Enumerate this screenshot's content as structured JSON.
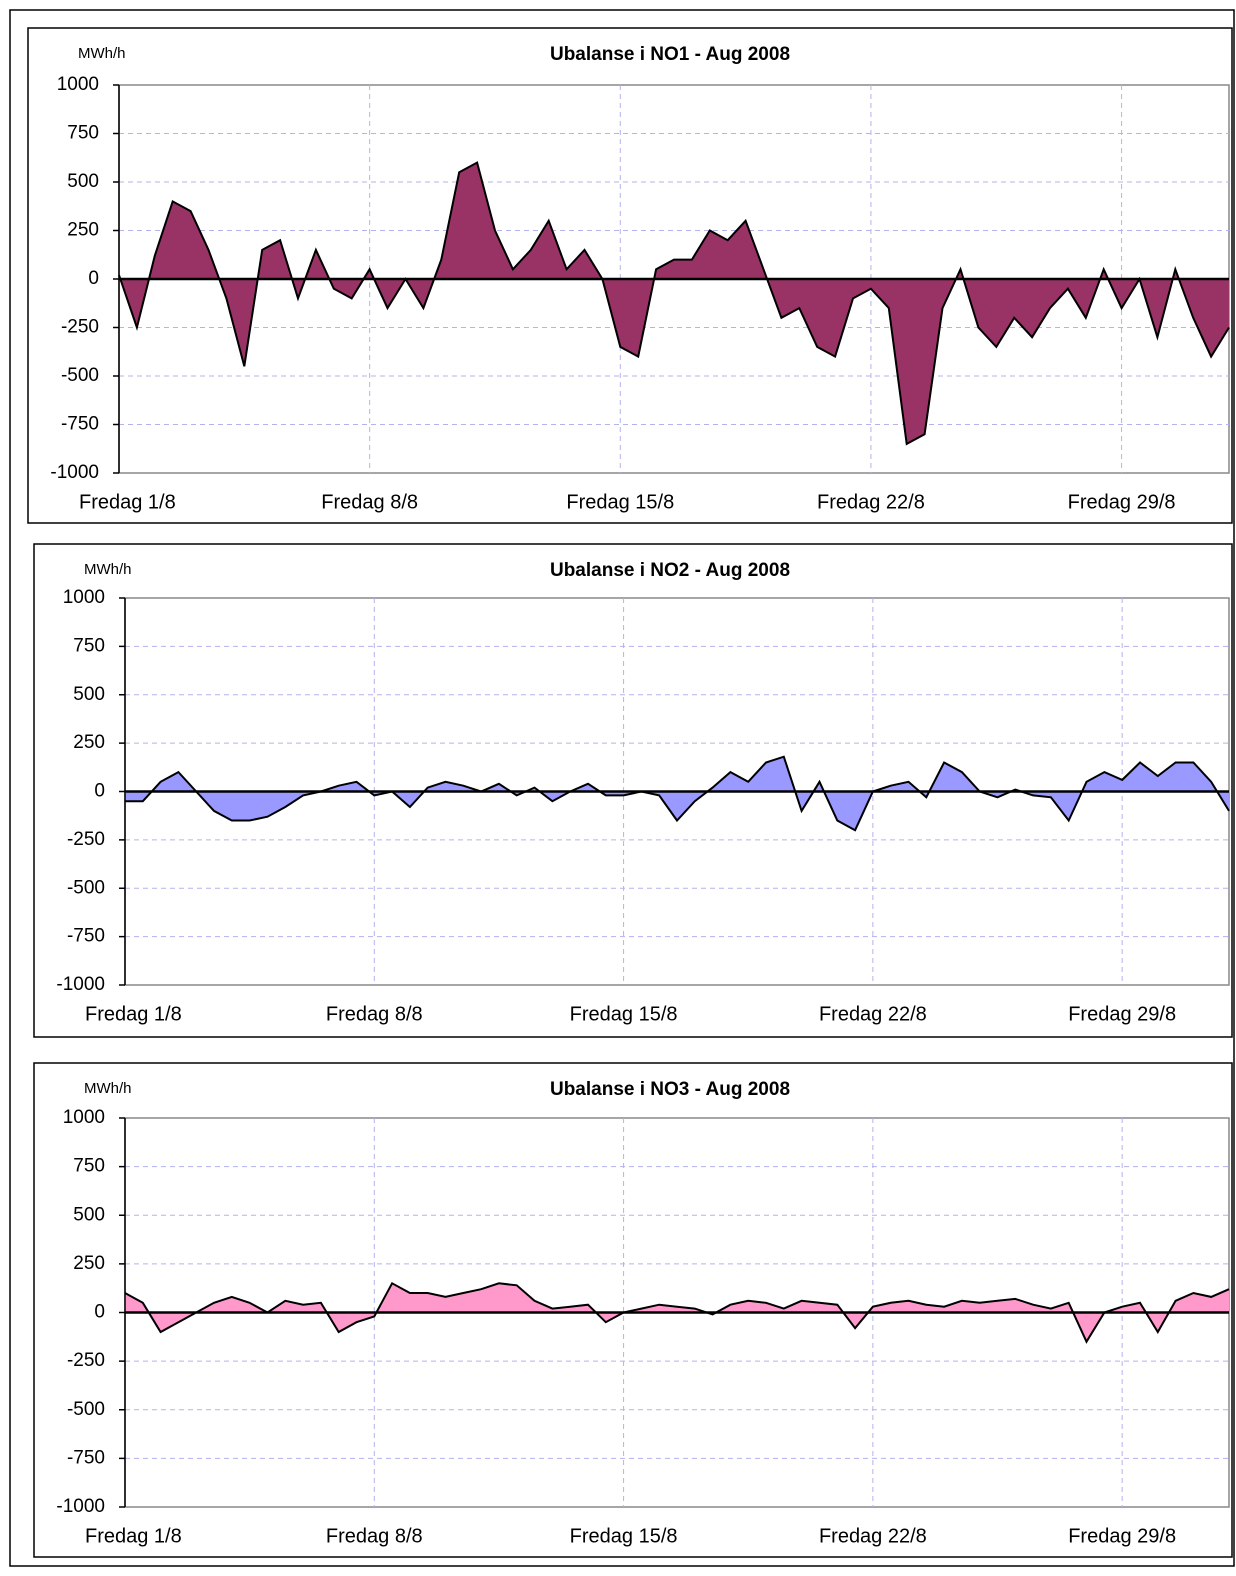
{
  "chart_data": [
    {
      "type": "area",
      "title": "Ubalanse i NO1 -  Aug  2008",
      "y_unit": "MWh/h",
      "x": [
        0,
        0.5,
        1,
        1.5,
        2,
        2.5,
        3,
        3.5,
        4,
        4.5,
        5,
        5.5,
        6,
        6.5,
        7,
        7.5,
        8,
        8.5,
        9,
        9.5,
        10,
        10.5,
        11,
        11.5,
        12,
        12.5,
        13,
        13.5,
        14,
        14.5,
        15,
        15.5,
        16,
        16.5,
        17,
        17.5,
        18,
        18.5,
        19,
        19.5,
        20,
        20.5,
        21,
        21.5,
        22,
        22.5,
        23,
        23.5,
        24,
        24.5,
        25,
        25.5,
        26,
        26.5,
        27,
        27.5,
        28,
        28.5,
        29,
        29.5,
        30,
        30.5,
        31
      ],
      "values": [
        20,
        -250,
        120,
        400,
        350,
        150,
        -100,
        -450,
        150,
        200,
        -100,
        150,
        -50,
        -100,
        50,
        -150,
        0,
        -150,
        100,
        550,
        600,
        250,
        50,
        150,
        300,
        50,
        150,
        0,
        -350,
        -400,
        50,
        100,
        100,
        250,
        200,
        300,
        50,
        -200,
        -150,
        -350,
        -400,
        -100,
        -50,
        -150,
        -850,
        -800,
        -150,
        50,
        -250,
        -350,
        -200,
        -300,
        -150,
        -50,
        -200,
        50,
        -150,
        0,
        -300,
        50,
        -200,
        -400,
        -250
      ],
      "color": "#993366",
      "line_color": "#000000",
      "xlim": [
        0,
        31
      ],
      "ylim": [
        -1000,
        1000
      ],
      "xticks": [
        {
          "value": 0,
          "label": "Fredag 1/8"
        },
        {
          "value": 7,
          "label": "Fredag 8/8"
        },
        {
          "value": 14,
          "label": "Fredag 15/8"
        },
        {
          "value": 21,
          "label": "Fredag 22/8"
        },
        {
          "value": 28,
          "label": "Fredag 29/8"
        }
      ],
      "yticks": [
        -1000,
        -750,
        -500,
        -250,
        0,
        250,
        500,
        750,
        1000
      ],
      "grid": true
    },
    {
      "type": "area",
      "title": "Ubalanse i NO2 - Aug 2008",
      "y_unit": "MWh/h",
      "x": [
        0,
        0.5,
        1,
        1.5,
        2,
        2.5,
        3,
        3.5,
        4,
        4.5,
        5,
        5.5,
        6,
        6.5,
        7,
        7.5,
        8,
        8.5,
        9,
        9.5,
        10,
        10.5,
        11,
        11.5,
        12,
        12.5,
        13,
        13.5,
        14,
        14.5,
        15,
        15.5,
        16,
        16.5,
        17,
        17.5,
        18,
        18.5,
        19,
        19.5,
        20,
        20.5,
        21,
        21.5,
        22,
        22.5,
        23,
        23.5,
        24,
        24.5,
        25,
        25.5,
        26,
        26.5,
        27,
        27.5,
        28,
        28.5,
        29,
        29.5,
        30,
        30.5,
        31
      ],
      "values": [
        -50,
        -50,
        50,
        100,
        0,
        -100,
        -150,
        -150,
        -130,
        -80,
        -20,
        0,
        30,
        50,
        -20,
        0,
        -80,
        20,
        50,
        30,
        0,
        40,
        -20,
        20,
        -50,
        0,
        40,
        -20,
        -20,
        0,
        -20,
        -150,
        -50,
        20,
        100,
        50,
        150,
        180,
        -100,
        50,
        -150,
        -200,
        0,
        30,
        50,
        -30,
        150,
        100,
        0,
        -30,
        10,
        -20,
        -30,
        -150,
        50,
        100,
        60,
        150,
        80,
        150,
        150,
        50,
        -100
      ],
      "color": "#9999ff",
      "line_color": "#000000",
      "xlim": [
        0,
        31
      ],
      "ylim": [
        -1000,
        1000
      ],
      "xticks": [
        {
          "value": 0,
          "label": "Fredag 1/8"
        },
        {
          "value": 7,
          "label": "Fredag 8/8"
        },
        {
          "value": 14,
          "label": "Fredag 15/8"
        },
        {
          "value": 21,
          "label": "Fredag 22/8"
        },
        {
          "value": 28,
          "label": "Fredag 29/8"
        }
      ],
      "yticks": [
        -1000,
        -750,
        -500,
        -250,
        0,
        250,
        500,
        750,
        1000
      ],
      "grid": true
    },
    {
      "type": "area",
      "title": "Ubalanse i NO3 - Aug  2008",
      "y_unit": "MWh/h",
      "x": [
        0,
        0.5,
        1,
        1.5,
        2,
        2.5,
        3,
        3.5,
        4,
        4.5,
        5,
        5.5,
        6,
        6.5,
        7,
        7.5,
        8,
        8.5,
        9,
        9.5,
        10,
        10.5,
        11,
        11.5,
        12,
        12.5,
        13,
        13.5,
        14,
        14.5,
        15,
        15.5,
        16,
        16.5,
        17,
        17.5,
        18,
        18.5,
        19,
        19.5,
        20,
        20.5,
        21,
        21.5,
        22,
        22.5,
        23,
        23.5,
        24,
        24.5,
        25,
        25.5,
        26,
        26.5,
        27,
        27.5,
        28,
        28.5,
        29,
        29.5,
        30,
        30.5,
        31
      ],
      "values": [
        100,
        50,
        -100,
        -50,
        0,
        50,
        80,
        50,
        0,
        60,
        40,
        50,
        -100,
        -50,
        -20,
        150,
        100,
        100,
        80,
        100,
        120,
        150,
        140,
        60,
        20,
        30,
        40,
        -50,
        0,
        20,
        40,
        30,
        20,
        -10,
        40,
        60,
        50,
        20,
        60,
        50,
        40,
        -80,
        30,
        50,
        60,
        40,
        30,
        60,
        50,
        60,
        70,
        40,
        20,
        50,
        -150,
        0,
        30,
        50,
        -100,
        60,
        100,
        80,
        120
      ],
      "color": "#ff99cc",
      "line_color": "#000000",
      "xlim": [
        0,
        31
      ],
      "ylim": [
        -1000,
        1000
      ],
      "xticks": [
        {
          "value": 0,
          "label": "Fredag 1/8"
        },
        {
          "value": 7,
          "label": "Fredag 8/8"
        },
        {
          "value": 14,
          "label": "Fredag 15/8"
        },
        {
          "value": 21,
          "label": "Fredag 22/8"
        },
        {
          "value": 28,
          "label": "Fredag 29/8"
        }
      ],
      "yticks": [
        -1000,
        -750,
        -500,
        -250,
        0,
        250,
        500,
        750,
        1000
      ],
      "grid": true
    }
  ]
}
